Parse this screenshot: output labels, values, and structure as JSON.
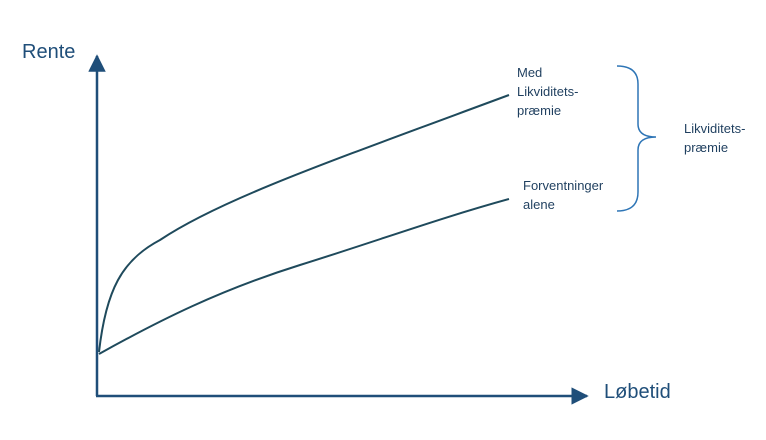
{
  "axes": {
    "y_title": "Rente",
    "x_title": "Løbetid"
  },
  "curves": {
    "upper_label": [
      "Med",
      "Likviditets-",
      "præmie"
    ],
    "lower_label": [
      "Forventninger",
      "alene"
    ]
  },
  "bracket": {
    "label": [
      "Likviditets-",
      "præmie"
    ]
  },
  "colors": {
    "axis": "#1f4e79",
    "curve": "#1f4a5c",
    "bracket": "#2e75b6"
  }
}
